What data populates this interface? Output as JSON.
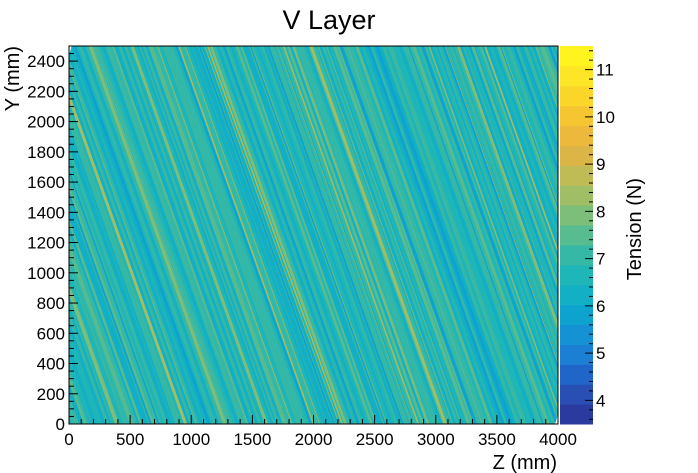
{
  "chart_data": {
    "type": "heatmap",
    "title": "V Layer",
    "xlabel": "Z (mm)",
    "ylabel": "Y (mm)",
    "zlabel": "Tension (N)",
    "xlim": [
      0,
      4000
    ],
    "ylim": [
      0,
      2500
    ],
    "zlim": [
      3.5,
      11.5
    ],
    "x_ticks": [
      0,
      500,
      1000,
      1500,
      2000,
      2500,
      3000,
      3500,
      4000
    ],
    "y_ticks": [
      0,
      200,
      400,
      600,
      800,
      1000,
      1200,
      1400,
      1600,
      1800,
      2000,
      2200,
      2400
    ],
    "z_ticks": [
      4,
      5,
      6,
      7,
      8,
      9,
      10,
      11
    ],
    "palette": [
      "#2b3a9e",
      "#2a4fb4",
      "#1f66c8",
      "#1b7fd4",
      "#1492d4",
      "#0ea3cf",
      "#13afc5",
      "#1fb6b8",
      "#35b9a6",
      "#57bc90",
      "#7cbe7a",
      "#9fbe66",
      "#bfbb55",
      "#dbb647",
      "#ecb93c",
      "#f6c532",
      "#fbd62a",
      "#fde626",
      "#fff41e"
    ],
    "stripe_slope_z_per_y": -0.44,
    "dominant_tension_range": [
      5.9,
      7.6
    ],
    "grid": false,
    "colorbar_position": "right"
  }
}
